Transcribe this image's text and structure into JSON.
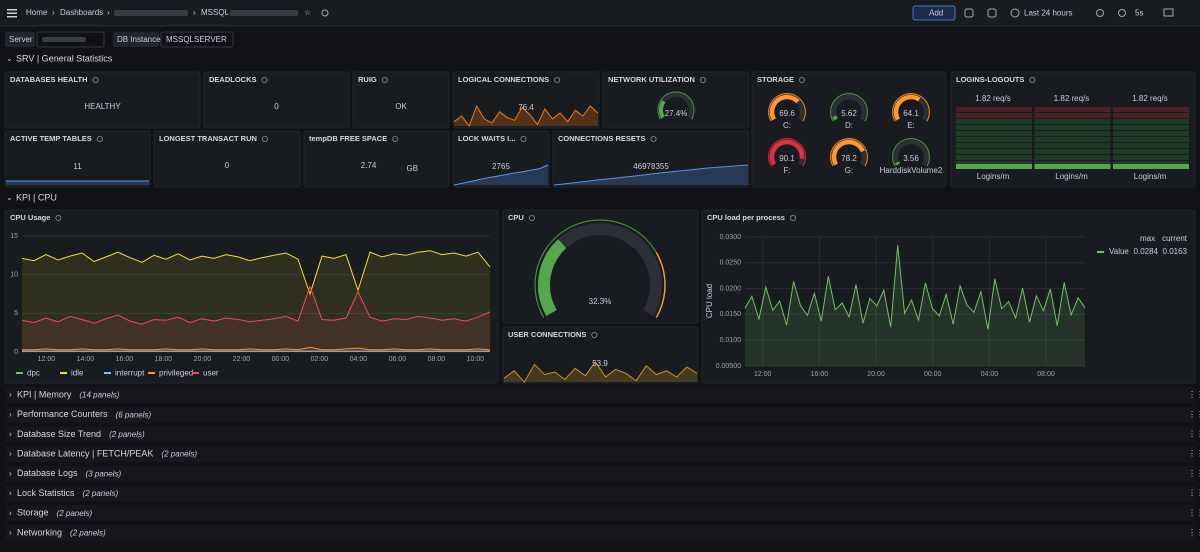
{
  "header": {
    "breadcrumbs": [
      "Home",
      "Dashboards",
      "MSSQL"
    ],
    "add": "Add",
    "time_range": "Last 24 hours",
    "refresh": "5s"
  },
  "variables": [
    {
      "label": "Server"
    },
    {
      "label": "DB Instance",
      "value": "MSSQLSERVER"
    }
  ],
  "sections": [
    "SRV | General Statistics",
    "KPI | CPU"
  ],
  "stats": [
    {
      "title": "DATABASES HEALTH",
      "value": "HEALTHY",
      "color": "#56a64b"
    },
    {
      "title": "DEADLOCKS",
      "value": 0,
      "color": "#56a64b"
    },
    {
      "title": "RUIG",
      "value": "OK",
      "color": "#ff5f1f"
    },
    {
      "title": "LOGICAL CONNECTIONS",
      "value": 76.4,
      "color": "#ff780a",
      "spark": [
        75.8,
        76.2,
        75.5,
        76.9,
        76.0,
        75.7,
        76.5,
        76.1,
        75.9,
        76.8,
        76.3,
        75.6,
        76.7,
        76.0,
        76.4,
        75.8,
        76.6,
        76.2,
        76.9,
        76.4
      ]
    },
    {
      "title": "ACTIVE TEMP TABLES",
      "value": 11,
      "color": "#d8d9da",
      "spark": [
        11,
        11,
        11,
        11,
        11,
        11,
        11,
        11,
        11,
        11
      ]
    },
    {
      "title": "LONGEST TRANSACT RUN",
      "value": 0,
      "color": "#d8d9da"
    },
    {
      "title": "tempDB FREE SPACE",
      "value": 2.74,
      "unit": "GB",
      "color": "#d8d9da"
    },
    {
      "title": "LOCK WAITS I...",
      "value": 2765,
      "color": "#d8d9da",
      "spark": [
        2600,
        2615,
        2630,
        2645,
        2660,
        2672,
        2685,
        2698,
        2710,
        2722,
        2735,
        2765
      ]
    },
    {
      "title": "CONNECTIONS RESETS",
      "value": 46978355,
      "color": "#d8d9da",
      "spark": [
        46970000,
        46971000,
        46972100,
        46973000,
        46974000,
        46975100,
        46976000,
        46977000,
        46977700,
        46978355
      ]
    }
  ],
  "network": {
    "title": "NETWORK UTILIZATION",
    "value": 27.4,
    "value_label": "27.4%",
    "max": 100,
    "color": "#56a64b"
  },
  "storage": {
    "title": "STORAGE",
    "max": 100,
    "gauges": [
      {
        "label": "C:",
        "value": 69.6,
        "color": "#ff9830"
      },
      {
        "label": "D:",
        "value": 5.62,
        "color": "#56a64b"
      },
      {
        "label": "E:",
        "value": 64.1,
        "color": "#ff9830"
      },
      {
        "label": "F:",
        "value": 90.1,
        "color": "#e02f44"
      },
      {
        "label": "G:",
        "value": 78.2,
        "color": "#ff9830"
      },
      {
        "label": "HarddiskVolume2",
        "value": 3.56,
        "color": "#56a64b"
      }
    ]
  },
  "logins": {
    "title": "LOGINS-LOGOUTS",
    "columns": [
      {
        "rate": "1.82 req/s",
        "name": "Logins/m"
      },
      {
        "rate": "1.82 req/s",
        "name": "Logins/m"
      },
      {
        "rate": "1.82 req/s",
        "name": "Logins/m"
      }
    ]
  },
  "cpu_usage": {
    "title": "CPU Usage",
    "ylim": [
      0,
      15
    ],
    "yticks": [
      0,
      5,
      10,
      15
    ],
    "xticks": [
      "12:00",
      "14:00",
      "16:00",
      "18:00",
      "20:00",
      "22:00",
      "00:00",
      "02:00",
      "04:00",
      "06:00",
      "08:00",
      "10:00"
    ],
    "series": [
      {
        "name": "dpc",
        "color": "#73bf69",
        "values": [
          0.1,
          0.1,
          0.1,
          0.1,
          0.1,
          0.1,
          0.1,
          0.1,
          0.1,
          0.1,
          0.1,
          0.1,
          0.1,
          0.1,
          0.1,
          0.1,
          0.1,
          0.1,
          0.1,
          0.1,
          0.1,
          0.1,
          0.1,
          0.1,
          0.1,
          0.1,
          0.1,
          0.1,
          0.1,
          0.1,
          0.1,
          0.1,
          0.1,
          0.1,
          0.1,
          0.1,
          0.1,
          0.1,
          0.1,
          0.1
        ]
      },
      {
        "name": "idle",
        "color": "#fade2a",
        "values": [
          12.1,
          11.8,
          12.6,
          11.9,
          12.4,
          12.8,
          11.7,
          12.3,
          12.9,
          12.2,
          11.6,
          12.5,
          12.0,
          12.7,
          11.9,
          12.4,
          12.1,
          12.6,
          12.3,
          11.8,
          12.2,
          12.5,
          12.8,
          12.0,
          7.5,
          12.4,
          12.1,
          12.6,
          8.0,
          12.9,
          12.3,
          12.7,
          12.5,
          12.9,
          13.1,
          12.6,
          12.8,
          12.4,
          12.9,
          11.0
        ]
      },
      {
        "name": "interrupt",
        "color": "#8ab8ff",
        "values": [
          0.1,
          0.1,
          0.1,
          0.1,
          0.1,
          0.1,
          0.1,
          0.1,
          0.1,
          0.1,
          0.1,
          0.1,
          0.1,
          0.1,
          0.1,
          0.1,
          0.1,
          0.1,
          0.1,
          0.1,
          0.1,
          0.1,
          0.1,
          0.1,
          0.1,
          0.1,
          0.1,
          0.1,
          0.1,
          0.1,
          0.1,
          0.1,
          0.1,
          0.1,
          0.1,
          0.1,
          0.1,
          0.1,
          0.1,
          0.1
        ]
      },
      {
        "name": "privileged",
        "color": "#ff9830",
        "values": [
          0.3,
          0.3,
          0.4,
          0.3,
          0.3,
          0.4,
          0.3,
          0.3,
          0.4,
          0.3,
          0.3,
          0.3,
          0.4,
          0.3,
          0.3,
          0.4,
          0.3,
          0.3,
          0.3,
          0.4,
          0.3,
          0.3,
          0.4,
          0.3,
          0.6,
          0.3,
          0.3,
          0.4,
          0.5,
          0.3,
          0.3,
          0.4,
          0.3,
          0.3,
          0.4,
          0.3,
          0.3,
          0.3,
          0.4,
          0.3
        ]
      },
      {
        "name": "user",
        "color": "#f2495c",
        "values": [
          4.1,
          3.8,
          4.4,
          3.9,
          4.6,
          4.2,
          3.7,
          4.3,
          4.8,
          4.0,
          3.6,
          4.2,
          4.1,
          4.5,
          3.8,
          4.3,
          4.0,
          4.4,
          4.2,
          3.9,
          4.1,
          4.3,
          4.6,
          4.0,
          8.5,
          4.2,
          4.1,
          4.4,
          7.8,
          4.5,
          4.0,
          4.3,
          4.2,
          4.6,
          4.4,
          4.1,
          4.3,
          4.0,
          4.5,
          5.2
        ]
      }
    ]
  },
  "cpu": {
    "title": "CPU",
    "value": 32.3,
    "value_label": "32.3%",
    "max": 100,
    "color": "#56a64b"
  },
  "user_connections": {
    "title": "USER CONNECTIONS",
    "value": 53.9,
    "color": "#fade2a",
    "spark": [
      53.5,
      54.1,
      53.2,
      54.6,
      53.8,
      54.0,
      53.4,
      54.3,
      53.7,
      54.8,
      53.6,
      54.2,
      53.9,
      53.3,
      54.5,
      53.8,
      54.1,
      53.6,
      54.4,
      53.9
    ]
  },
  "cpu_load": {
    "title": "CPU load per process",
    "axis_label": "CPU load",
    "ylim": [
      0.005,
      0.03
    ],
    "yticks": [
      {
        "value": 0.005,
        "label": "0.00500"
      },
      {
        "value": 0.01,
        "label": "0.0100"
      },
      {
        "value": 0.015,
        "label": "0.0150"
      },
      {
        "value": 0.02,
        "label": "0.0200"
      },
      {
        "value": 0.025,
        "label": "0.0250"
      },
      {
        "value": 0.03,
        "label": "0.0300"
      }
    ],
    "xticks": [
      "12:00",
      "16:00",
      "20:00",
      "00:00",
      "04:00",
      "08:00"
    ],
    "legend_headers": [
      "max",
      "current"
    ],
    "series": [
      {
        "name": "Value",
        "color": "#73bf69",
        "max": 0.0284,
        "current": 0.0163,
        "values": [
          0.0162,
          0.0185,
          0.0141,
          0.0203,
          0.0158,
          0.0176,
          0.0129,
          0.0214,
          0.0167,
          0.0148,
          0.0191,
          0.0137,
          0.0224,
          0.0159,
          0.0172,
          0.0145,
          0.0208,
          0.0133,
          0.0181,
          0.0166,
          0.0197,
          0.0125,
          0.0284,
          0.0152,
          0.0178,
          0.0139,
          0.0211,
          0.0162,
          0.0147,
          0.0189,
          0.0131,
          0.0205,
          0.0168,
          0.0154,
          0.0194,
          0.0121,
          0.0219,
          0.0161,
          0.0175,
          0.0143,
          0.0201,
          0.0135,
          0.0186,
          0.0157,
          0.0199,
          0.0128,
          0.0212,
          0.0149,
          0.0182,
          0.0163
        ]
      }
    ]
  },
  "collapsed": [
    {
      "title": "KPI | Memory",
      "count": "(14 panels)"
    },
    {
      "title": "Performance Counters",
      "count": "(6 panels)"
    },
    {
      "title": "Database Size Trend",
      "count": "(2 panels)"
    },
    {
      "title": "Database Latency | FETCH/PEAK",
      "count": "(2 panels)"
    },
    {
      "title": "Database Logs",
      "count": "(3 panels)"
    },
    {
      "title": "Lock Statistics",
      "count": "(2 panels)"
    },
    {
      "title": "Storage",
      "count": "(2 panels)"
    },
    {
      "title": "Networking",
      "count": "(2 panels)"
    }
  ]
}
